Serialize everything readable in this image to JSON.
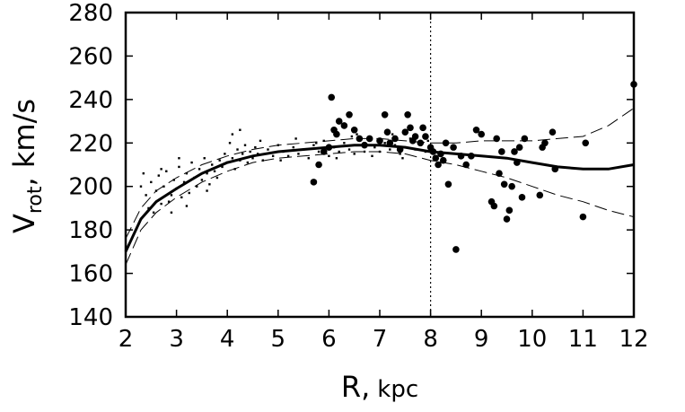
{
  "chart_data": {
    "type": "scatter",
    "title": "",
    "xlabel": {
      "main": "R,",
      "unit": "kpc"
    },
    "ylabel": {
      "main": "V",
      "sub": "rot",
      "rest": ", km/s"
    },
    "xlim": [
      2,
      12
    ],
    "ylim": [
      140,
      280
    ],
    "xticks": [
      2,
      3,
      4,
      5,
      6,
      7,
      8,
      9,
      10,
      11,
      12
    ],
    "yticks": [
      140,
      160,
      180,
      200,
      220,
      240,
      260,
      280
    ],
    "reference_line_x": 8,
    "rotation_curve": [
      [
        2.0,
        170
      ],
      [
        2.3,
        185
      ],
      [
        2.6,
        193
      ],
      [
        3.0,
        199
      ],
      [
        3.5,
        206
      ],
      [
        4.0,
        211
      ],
      [
        4.5,
        214
      ],
      [
        5.0,
        216
      ],
      [
        5.5,
        217
      ],
      [
        6.0,
        218
      ],
      [
        6.5,
        219
      ],
      [
        7.0,
        219
      ],
      [
        7.5,
        218
      ],
      [
        8.0,
        216
      ],
      [
        8.5,
        215
      ],
      [
        9.0,
        214
      ],
      [
        9.5,
        213
      ],
      [
        10.0,
        211
      ],
      [
        10.5,
        209
      ],
      [
        11.0,
        208
      ],
      [
        11.5,
        208
      ],
      [
        12.0,
        210
      ]
    ],
    "upper_bound": [
      [
        2.0,
        176
      ],
      [
        2.3,
        190
      ],
      [
        2.6,
        198
      ],
      [
        3.0,
        204
      ],
      [
        3.5,
        210
      ],
      [
        4.0,
        214
      ],
      [
        4.5,
        217
      ],
      [
        5.0,
        219
      ],
      [
        5.5,
        220
      ],
      [
        6.0,
        221
      ],
      [
        6.5,
        222
      ],
      [
        7.0,
        222
      ],
      [
        7.5,
        221
      ],
      [
        8.0,
        220
      ],
      [
        8.5,
        220
      ],
      [
        9.0,
        221
      ],
      [
        9.5,
        221
      ],
      [
        10.0,
        221
      ],
      [
        10.5,
        222
      ],
      [
        11.0,
        223
      ],
      [
        11.5,
        228
      ],
      [
        12.0,
        236
      ]
    ],
    "lower_bound": [
      [
        2.0,
        164
      ],
      [
        2.3,
        180
      ],
      [
        2.6,
        188
      ],
      [
        3.0,
        195
      ],
      [
        3.5,
        202
      ],
      [
        4.0,
        207
      ],
      [
        4.5,
        211
      ],
      [
        5.0,
        213
      ],
      [
        5.5,
        214
      ],
      [
        6.0,
        215
      ],
      [
        6.5,
        216
      ],
      [
        7.0,
        216
      ],
      [
        7.5,
        215
      ],
      [
        8.0,
        212
      ],
      [
        8.5,
        210
      ],
      [
        9.0,
        207
      ],
      [
        9.5,
        204
      ],
      [
        10.0,
        200
      ],
      [
        10.5,
        196
      ],
      [
        11.0,
        193
      ],
      [
        11.5,
        189
      ],
      [
        12.0,
        186
      ]
    ],
    "large_points": [
      [
        5.7,
        202
      ],
      [
        5.8,
        210
      ],
      [
        5.9,
        216
      ],
      [
        6.0,
        218
      ],
      [
        6.05,
        241
      ],
      [
        6.1,
        226
      ],
      [
        6.15,
        224
      ],
      [
        6.2,
        230
      ],
      [
        6.3,
        228
      ],
      [
        6.4,
        233
      ],
      [
        6.5,
        226
      ],
      [
        6.6,
        222
      ],
      [
        6.7,
        219
      ],
      [
        6.8,
        222
      ],
      [
        7.0,
        221
      ],
      [
        7.1,
        233
      ],
      [
        7.15,
        225
      ],
      [
        7.2,
        220
      ],
      [
        7.3,
        222
      ],
      [
        7.4,
        217
      ],
      [
        7.5,
        225
      ],
      [
        7.55,
        233
      ],
      [
        7.6,
        227
      ],
      [
        7.65,
        221
      ],
      [
        7.7,
        223
      ],
      [
        7.8,
        220
      ],
      [
        7.85,
        227
      ],
      [
        7.9,
        223
      ],
      [
        8.0,
        218
      ],
      [
        8.05,
        216
      ],
      [
        8.1,
        213
      ],
      [
        8.15,
        210
      ],
      [
        8.2,
        215
      ],
      [
        8.25,
        212
      ],
      [
        8.3,
        220
      ],
      [
        8.35,
        201
      ],
      [
        8.45,
        218
      ],
      [
        8.5,
        171
      ],
      [
        8.6,
        214
      ],
      [
        8.7,
        210
      ],
      [
        8.8,
        214
      ],
      [
        8.9,
        226
      ],
      [
        9.0,
        224
      ],
      [
        9.2,
        193
      ],
      [
        9.25,
        191
      ],
      [
        9.3,
        222
      ],
      [
        9.35,
        206
      ],
      [
        9.4,
        216
      ],
      [
        9.45,
        201
      ],
      [
        9.5,
        185
      ],
      [
        9.55,
        189
      ],
      [
        9.6,
        200
      ],
      [
        9.65,
        216
      ],
      [
        9.7,
        211
      ],
      [
        9.75,
        218
      ],
      [
        9.8,
        195
      ],
      [
        9.85,
        222
      ],
      [
        10.15,
        196
      ],
      [
        10.2,
        218
      ],
      [
        10.25,
        220
      ],
      [
        10.4,
        225
      ],
      [
        10.45,
        208
      ],
      [
        11.0,
        186
      ],
      [
        11.05,
        220
      ],
      [
        12.0,
        247
      ]
    ],
    "small_points": [
      [
        2.3,
        200
      ],
      [
        2.35,
        206
      ],
      [
        2.4,
        196
      ],
      [
        2.45,
        190
      ],
      [
        2.5,
        202
      ],
      [
        2.55,
        188
      ],
      [
        2.6,
        198
      ],
      [
        2.65,
        205
      ],
      [
        2.7,
        192
      ],
      [
        2.75,
        200
      ],
      [
        2.8,
        207
      ],
      [
        2.85,
        193
      ],
      [
        2.9,
        196
      ],
      [
        2.95,
        203
      ],
      [
        3.0,
        199
      ],
      [
        3.05,
        209
      ],
      [
        3.1,
        195
      ],
      [
        3.15,
        202
      ],
      [
        3.2,
        206
      ],
      [
        3.25,
        197
      ],
      [
        3.3,
        211
      ],
      [
        3.35,
        204
      ],
      [
        3.4,
        200
      ],
      [
        3.45,
        208
      ],
      [
        3.5,
        203
      ],
      [
        3.55,
        213
      ],
      [
        3.6,
        206
      ],
      [
        3.65,
        201
      ],
      [
        3.7,
        210
      ],
      [
        3.75,
        207
      ],
      [
        3.8,
        204
      ],
      [
        3.85,
        212
      ],
      [
        3.9,
        209
      ],
      [
        3.95,
        215
      ],
      [
        4.0,
        211
      ],
      [
        4.05,
        220
      ],
      [
        4.1,
        213
      ],
      [
        4.15,
        208
      ],
      [
        4.2,
        217
      ],
      [
        4.25,
        212
      ],
      [
        4.3,
        215
      ],
      [
        4.35,
        219
      ],
      [
        4.4,
        211
      ],
      [
        4.45,
        216
      ],
      [
        4.5,
        213
      ],
      [
        4.55,
        218
      ],
      [
        4.6,
        215
      ],
      [
        4.7,
        212
      ],
      [
        4.8,
        217
      ],
      [
        4.9,
        214
      ],
      [
        5.0,
        219
      ],
      [
        5.1,
        216
      ],
      [
        5.2,
        214
      ],
      [
        5.3,
        218
      ],
      [
        5.4,
        215
      ],
      [
        5.5,
        217
      ],
      [
        5.6,
        213
      ],
      [
        5.7,
        219
      ],
      [
        5.8,
        216
      ],
      [
        5.9,
        221
      ],
      [
        6.0,
        214
      ],
      [
        6.1,
        218
      ],
      [
        6.2,
        216
      ],
      [
        6.3,
        220
      ],
      [
        6.4,
        217
      ],
      [
        6.5,
        215
      ],
      [
        6.6,
        219
      ],
      [
        6.7,
        216
      ],
      [
        6.8,
        221
      ],
      [
        6.9,
        218
      ],
      [
        7.0,
        216
      ],
      [
        7.1,
        220
      ],
      [
        7.2,
        217
      ],
      [
        7.3,
        219
      ],
      [
        7.4,
        215
      ],
      [
        7.5,
        218
      ],
      [
        7.6,
        222
      ],
      [
        7.7,
        217
      ],
      [
        7.8,
        219
      ],
      [
        7.9,
        216
      ],
      [
        3.6,
        198
      ],
      [
        3.2,
        191
      ],
      [
        2.9,
        188
      ],
      [
        4.1,
        224
      ],
      [
        4.25,
        226
      ],
      [
        5.35,
        222
      ],
      [
        6.45,
        223
      ],
      [
        6.55,
        224
      ],
      [
        7.25,
        224
      ],
      [
        2.7,
        208
      ],
      [
        3.05,
        213
      ],
      [
        5.05,
        212
      ],
      [
        6.15,
        213
      ],
      [
        7.45,
        213
      ],
      [
        4.65,
        221
      ],
      [
        5.75,
        220
      ],
      [
        6.85,
        214
      ],
      [
        7.95,
        221
      ]
    ]
  }
}
